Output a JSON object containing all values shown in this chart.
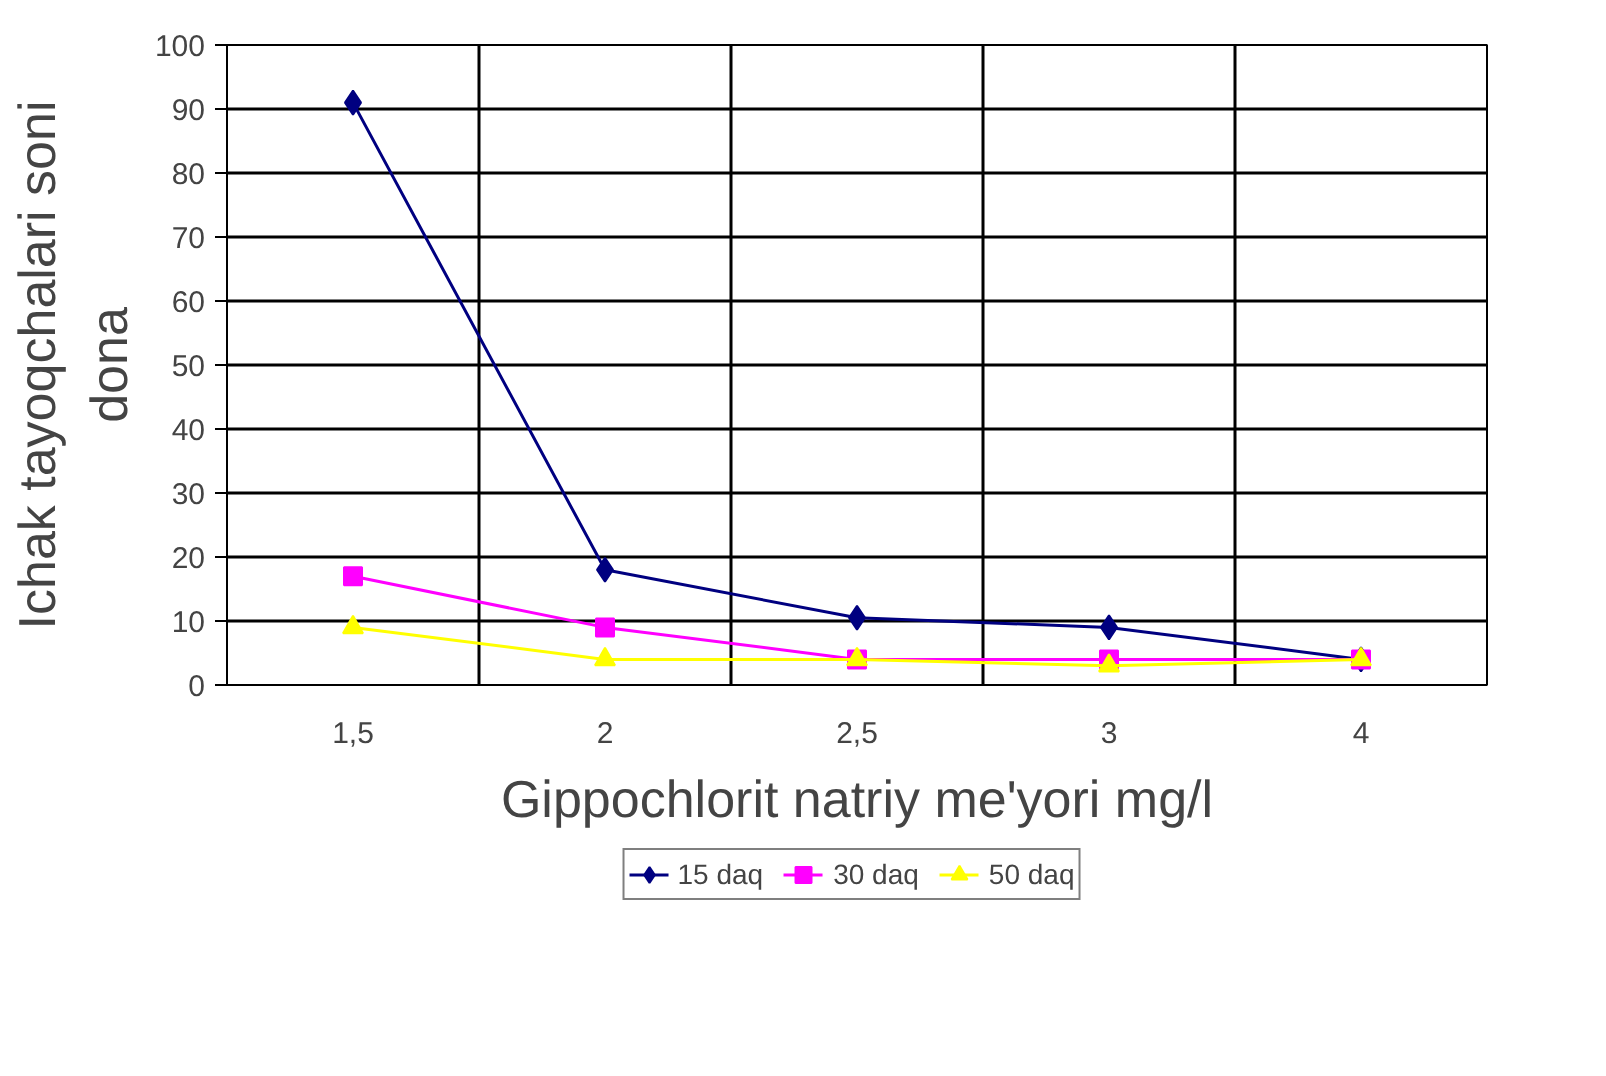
{
  "chart_data": {
    "type": "line",
    "xlabel": "Gippochlorit natriy me'yori mg/l",
    "ylabel": "Ichak tayoqchalari soni\ndona",
    "categories": [
      "1,5",
      "2",
      "2,5",
      "3",
      "4"
    ],
    "series": [
      {
        "name": "15 daq",
        "color": "#000080",
        "marker": "diamond",
        "values": [
          91,
          18,
          10.5,
          9,
          4
        ]
      },
      {
        "name": "30 daq",
        "color": "#ff00ff",
        "marker": "square",
        "values": [
          17,
          9,
          4,
          4,
          4
        ]
      },
      {
        "name": "50 daq",
        "color": "#ffff00",
        "marker": "triangle",
        "values": [
          9,
          4,
          4,
          3,
          4
        ]
      }
    ],
    "ylim": [
      0,
      100
    ],
    "yticks": [
      0,
      10,
      20,
      30,
      40,
      50,
      60,
      70,
      80,
      90,
      100
    ],
    "grid": true,
    "legend": "bottom",
    "line_style": "solid"
  }
}
